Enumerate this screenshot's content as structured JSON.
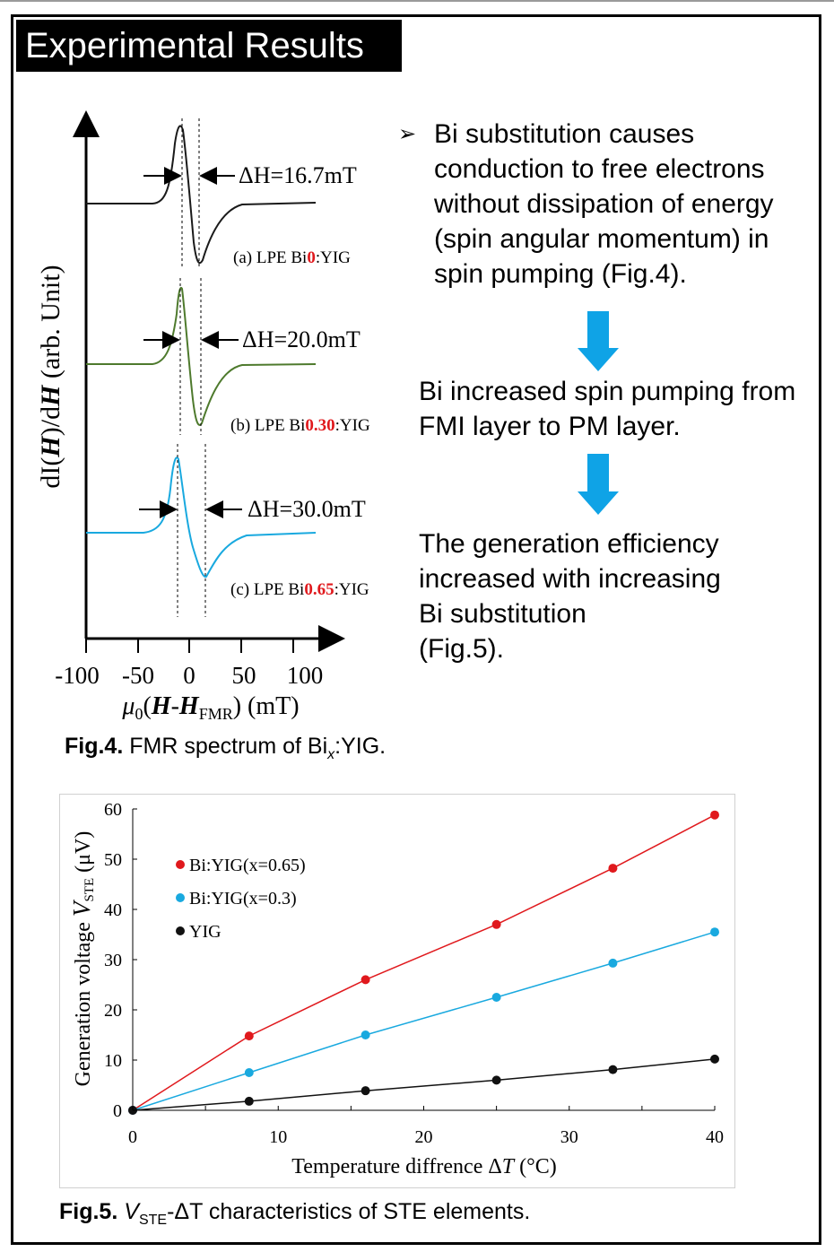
{
  "header": {
    "title": "Experimental Results"
  },
  "fmr_figure": {
    "ylabel": "dI(H)/dH   (arb. Unit)",
    "xlabel": "μ0(H-HFMR) (mT)",
    "xticks": [
      "-100",
      "-50",
      "0",
      "50",
      "100"
    ],
    "spectra": [
      {
        "label_prefix": "(a) LPE Bi",
        "x_value": "0",
        "label_suffix": ":YIG",
        "delta_h": "ΔH=16.7mT",
        "color": "#1a1a1a"
      },
      {
        "label_prefix": "(b) LPE Bi",
        "x_value": "0.30",
        "label_suffix": ":YIG",
        "delta_h": "ΔH=20.0mT",
        "color": "#4e7a2d"
      },
      {
        "label_prefix": "(c) LPE Bi",
        "x_value": "0.65",
        "label_suffix": ":YIG",
        "delta_h": "ΔH=30.0mT",
        "color": "#19a9df"
      }
    ],
    "x_value_color": "#e0191d",
    "caption_bold": "Fig.4.",
    "caption_text": " FMR spectrum of Bi",
    "caption_sub": "x",
    "caption_end": ":YIG."
  },
  "explanation": {
    "bullet": "Bi substitution causes conduction to free electrons without dissipation of energy (spin angular momentum) in spin pumping (Fig.4).",
    "step2": "Bi increased spin pumping from FMI layer to PM layer.",
    "step3_lines": [
      "The generation efficiency",
      "increased with increasing",
      "Bi substitution",
      "(Fig.5)."
    ],
    "arrow_color": "#0fa3e6"
  },
  "chart_data": {
    "type": "line",
    "x": [
      0,
      8,
      16,
      25,
      33,
      40
    ],
    "series": [
      {
        "name": "Bi:YIG(x=0.65)",
        "color": "#e0191d",
        "values": [
          0,
          14.8,
          26.0,
          37.0,
          48.2,
          58.8
        ]
      },
      {
        "name": "Bi:YIG(x=0.3)",
        "color": "#19a9df",
        "values": [
          0,
          7.5,
          15.0,
          22.5,
          29.3,
          35.5
        ]
      },
      {
        "name": "YIG",
        "color": "#111111",
        "values": [
          0,
          1.8,
          3.9,
          6.0,
          8.1,
          10.2
        ]
      }
    ],
    "xlim": [
      0,
      40
    ],
    "ylim": [
      0,
      60
    ],
    "xticks": [
      0,
      10,
      20,
      30,
      40
    ],
    "yticks": [
      0,
      10,
      20,
      30,
      40,
      50,
      60
    ],
    "xlabel": "Temperature diffrence ΔT  (°C)",
    "ylabel": "Generation voltage VSTE  (μV)",
    "legend_position": "top-left"
  },
  "fig5_caption": {
    "bold": "Fig.5.",
    "v": "V",
    "sub": "STE",
    "rest": "-ΔT characteristics of STE elements."
  }
}
